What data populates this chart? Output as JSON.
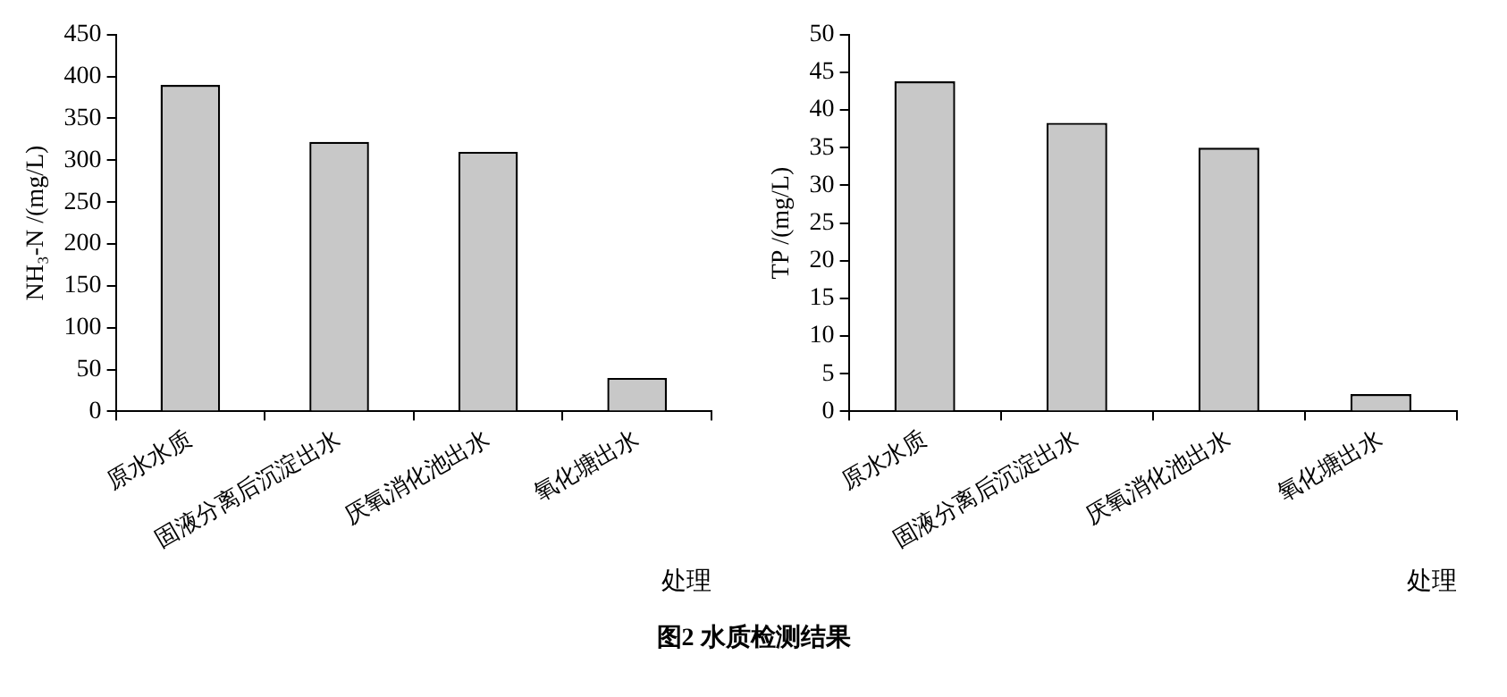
{
  "chart_data": [
    {
      "type": "bar",
      "categories": [
        "原水水质",
        "固液分离后沉淀出水",
        "厌氧消化池出水",
        "氧化塘出水"
      ],
      "values": [
        390,
        322,
        310,
        40
      ],
      "color": "#c8c8c8",
      "ylabel": "NH₃-N /(mg/L)",
      "xlabel": "处理",
      "ylim": [
        0,
        450
      ],
      "yticks": [
        0,
        50,
        100,
        150,
        200,
        250,
        300,
        350,
        400,
        450
      ],
      "grid": false,
      "legend": false,
      "annotations": [
        "图2  水质检测结果"
      ]
    },
    {
      "type": "bar",
      "categories": [
        "原水水质",
        "固液分离后沉淀出水",
        "厌氧消化池出水",
        "氧化塘出水"
      ],
      "values": [
        43.8,
        38.3,
        35,
        2.3
      ],
      "color": "#c8c8c8",
      "ylabel": "TP /(mg/L)",
      "xlabel": "处理",
      "ylim": [
        0,
        50
      ],
      "yticks": [
        0,
        5,
        10,
        15,
        20,
        25,
        30,
        35,
        40,
        45,
        50
      ],
      "grid": false,
      "legend": false
    }
  ]
}
